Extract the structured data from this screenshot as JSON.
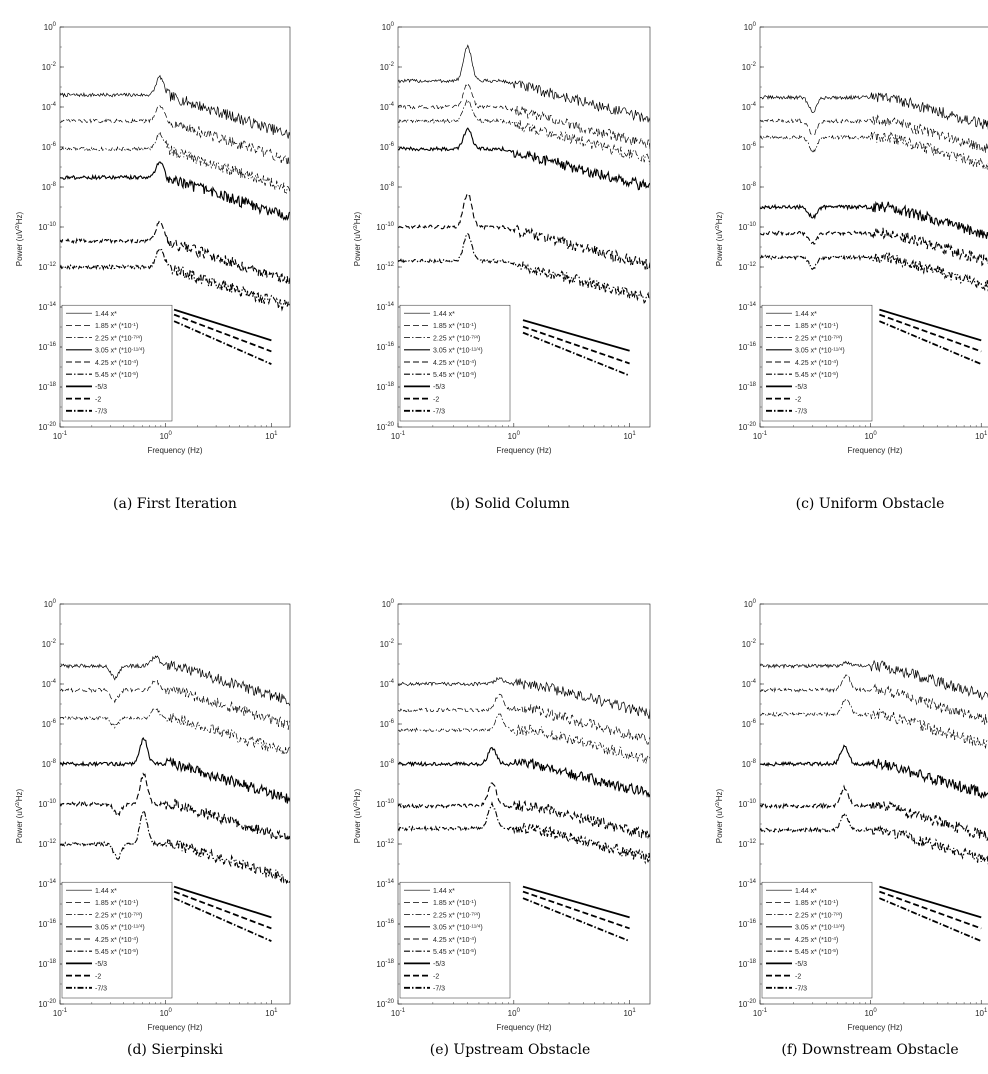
{
  "figure": {
    "panels": [
      {
        "caption": "(a)  First Iteration"
      },
      {
        "caption": "(b)  Solid Column"
      },
      {
        "caption": "(c)  Uniform Obstacle"
      },
      {
        "caption": "(d)  Sierpinski"
      },
      {
        "caption": "(e)  Upstream Obstacle"
      },
      {
        "caption": "(f)  Downstream Obstacle"
      }
    ]
  },
  "chart_data": [
    {
      "type": "line",
      "panel": "a",
      "xlabel": "Frequency (Hz)",
      "ylabel": "Power (uV²/Hz)",
      "xscale": "log",
      "yscale": "log",
      "xlim": [
        0.1,
        15
      ],
      "ylim": [
        1e-20,
        1
      ],
      "xticks": [
        0.1,
        1,
        10
      ],
      "yticks_exp": [
        -20,
        -18,
        -16,
        -14,
        -12,
        -10,
        -8,
        -6,
        -4,
        -2,
        0
      ],
      "legend_position": "bottom-left",
      "series": [
        {
          "name": "1.44 x*",
          "style": "solid-thin",
          "base": 0.0004,
          "peaks": [
            [
              0.88,
              8
            ]
          ],
          "roll": [
            1.0,
            -1.7
          ]
        },
        {
          "name": "1.85 x* (*10⁻¹)",
          "style": "dashed-thin",
          "base": 2e-05,
          "peaks": [
            [
              0.88,
              6
            ]
          ],
          "roll": [
            1.0,
            -1.7
          ]
        },
        {
          "name": "2.25 x* (*10⁻⁷/⁴)",
          "style": "dashdot-thin",
          "base": 8e-07,
          "peaks": [
            [
              0.88,
              6
            ]
          ],
          "roll": [
            1.0,
            -1.7
          ]
        },
        {
          "name": "3.05 x* (*10⁻¹¹/⁴)",
          "style": "solid-medium",
          "base": 3e-08,
          "peaks": [
            [
              0.88,
              6
            ]
          ],
          "roll": [
            1.0,
            -1.7
          ]
        },
        {
          "name": "4.25 x* (*10⁻⁴)",
          "style": "dashed-medium",
          "base": 2e-11,
          "peaks": [
            [
              0.88,
              10
            ]
          ],
          "roll": [
            1.0,
            -1.7
          ]
        },
        {
          "name": "5.45 x* (*10⁻⁵)",
          "style": "dashdot-medium",
          "base": 1e-12,
          "peaks": [
            [
              0.88,
              8
            ]
          ],
          "roll": [
            1.0,
            -1.7
          ]
        }
      ],
      "reference_lines": [
        {
          "name": "-5/3",
          "slope": -1.6667,
          "style": "solid-thick",
          "y_at_1": 1e-14
        },
        {
          "name": "-2",
          "slope": -2,
          "style": "dashed-thick",
          "y_at_1": 6e-15
        },
        {
          "name": "-7/3",
          "slope": -2.3333,
          "style": "dashdot-thick",
          "y_at_1": 3e-15
        }
      ]
    },
    {
      "type": "line",
      "panel": "b",
      "xlabel": "Frequency (Hz)",
      "ylabel": "Power (uV²/Hz)",
      "xscale": "log",
      "yscale": "log",
      "xlim": [
        0.1,
        15
      ],
      "ylim": [
        1e-20,
        1
      ],
      "xticks": [
        0.1,
        1,
        10
      ],
      "yticks_exp": [
        -20,
        -18,
        -16,
        -14,
        -12,
        -10,
        -8,
        -6,
        -4,
        -2,
        0
      ],
      "legend_position": "bottom-left",
      "series": [
        {
          "name": "1.44 x*",
          "style": "solid-thin",
          "base": 0.002,
          "peaks": [
            [
              0.4,
              50
            ]
          ],
          "roll": [
            0.8,
            -1.5
          ]
        },
        {
          "name": "1.85 x* (*10⁻¹)",
          "style": "dashed-thin",
          "base": 0.0001,
          "peaks": [
            [
              0.4,
              15
            ]
          ],
          "roll": [
            0.8,
            -1.5
          ]
        },
        {
          "name": "2.25 x* (*10⁻⁷/⁴)",
          "style": "dashdot-thin",
          "base": 2e-05,
          "peaks": [
            [
              0.4,
              10
            ]
          ],
          "roll": [
            0.8,
            -1.5
          ]
        },
        {
          "name": "3.05 x* (*10⁻¹¹/⁴)",
          "style": "solid-medium",
          "base": 8e-07,
          "peaks": [
            [
              0.4,
              10
            ]
          ],
          "roll": [
            0.8,
            -1.5
          ]
        },
        {
          "name": "4.25 x* (*10⁻⁴)",
          "style": "dashed-medium",
          "base": 1e-10,
          "peaks": [
            [
              0.4,
              50
            ]
          ],
          "roll": [
            0.8,
            -1.5
          ]
        },
        {
          "name": "5.45 x* (*10⁻⁵)",
          "style": "dashdot-medium",
          "base": 2e-12,
          "peaks": [
            [
              0.4,
              20
            ]
          ],
          "roll": [
            0.8,
            -1.5
          ]
        }
      ],
      "reference_lines": [
        {
          "name": "-5/3",
          "slope": -1.6667,
          "style": "solid-thick",
          "y_at_1": 3e-15
        },
        {
          "name": "-2",
          "slope": -2,
          "style": "dashed-thick",
          "y_at_1": 1.5e-15
        },
        {
          "name": "-7/3",
          "slope": -2.3333,
          "style": "dashdot-thick",
          "y_at_1": 8e-16
        }
      ]
    },
    {
      "type": "line",
      "panel": "c",
      "xlabel": "Frequency (Hz)",
      "ylabel": "Power (uV²/Hz)",
      "xscale": "log",
      "yscale": "log",
      "xlim": [
        0.1,
        12
      ],
      "ylim": [
        1e-20,
        1
      ],
      "xticks": [
        0.1,
        1,
        10
      ],
      "yticks_exp": [
        -20,
        -18,
        -16,
        -14,
        -12,
        -10,
        -8,
        -6,
        -4,
        -2,
        0
      ],
      "legend_position": "bottom-left",
      "series": [
        {
          "name": "1.44 x*",
          "style": "solid-thin",
          "base": 0.0003,
          "peaks": [
            [
              0.3,
              0.2
            ]
          ],
          "roll": [
            1.5,
            -1.6
          ]
        },
        {
          "name": "1.85 x* (*10⁻¹)",
          "style": "dashed-thin",
          "base": 2e-05,
          "peaks": [
            [
              0.3,
              0.2
            ]
          ],
          "roll": [
            1.5,
            -1.6
          ]
        },
        {
          "name": "2.25 x* (*10⁻⁷/⁴)",
          "style": "dashdot-thin",
          "base": 3e-06,
          "peaks": [
            [
              0.3,
              0.2
            ]
          ],
          "roll": [
            1.5,
            -1.6
          ]
        },
        {
          "name": "3.05 x* (*10⁻¹¹/⁴)",
          "style": "solid-medium",
          "base": 1e-09,
          "peaks": [
            [
              0.3,
              0.3
            ]
          ],
          "roll": [
            1.5,
            -1.6
          ]
        },
        {
          "name": "4.25 x* (*10⁻⁴)",
          "style": "dashed-medium",
          "base": 5e-11,
          "peaks": [
            [
              0.3,
              0.3
            ]
          ],
          "roll": [
            1.5,
            -1.6
          ]
        },
        {
          "name": "5.45 x* (*10⁻⁵)",
          "style": "dashdot-medium",
          "base": 3e-12,
          "peaks": [
            [
              0.3,
              0.3
            ]
          ],
          "roll": [
            1.5,
            -1.6
          ]
        }
      ],
      "reference_lines": [
        {
          "name": "-5/3",
          "slope": -1.6667,
          "style": "solid-thick",
          "y_at_1": 1e-14
        },
        {
          "name": "-2",
          "slope": -2,
          "style": "dashed-thick",
          "y_at_1": 6e-15
        },
        {
          "name": "-7/3",
          "slope": -2.3333,
          "style": "dashdot-thick",
          "y_at_1": 3e-15
        }
      ]
    },
    {
      "type": "line",
      "panel": "d",
      "xlabel": "Frequency (Hz)",
      "ylabel": "Power (uV²/Hz)",
      "xscale": "log",
      "yscale": "log",
      "xlim": [
        0.1,
        15
      ],
      "ylim": [
        1e-20,
        1
      ],
      "xticks": [
        0.1,
        1,
        10
      ],
      "yticks_exp": [
        -20,
        -18,
        -16,
        -14,
        -12,
        -10,
        -8,
        -6,
        -4,
        -2,
        0
      ],
      "legend_position": "bottom-left",
      "series": [
        {
          "name": "1.44 x*",
          "style": "solid-thin",
          "base": 0.0008,
          "peaks": [
            [
              0.33,
              0.25
            ],
            [
              0.8,
              3
            ]
          ],
          "roll": [
            1.2,
            -1.6
          ]
        },
        {
          "name": "1.85 x* (*10⁻¹)",
          "style": "dashed-thin",
          "base": 5e-05,
          "peaks": [
            [
              0.33,
              0.3
            ],
            [
              0.8,
              3
            ]
          ],
          "roll": [
            1.2,
            -1.6
          ]
        },
        {
          "name": "2.25 x* (*10⁻⁷/⁴)",
          "style": "dashdot-thin",
          "base": 2e-06,
          "peaks": [
            [
              0.33,
              0.4
            ],
            [
              0.8,
              3
            ]
          ],
          "roll": [
            1.2,
            -1.6
          ]
        },
        {
          "name": "3.05 x* (*10⁻¹¹/⁴)",
          "style": "solid-medium",
          "base": 1e-08,
          "peaks": [
            [
              0.62,
              20
            ]
          ],
          "roll": [
            1.2,
            -1.6
          ]
        },
        {
          "name": "4.25 x* (*10⁻⁴)",
          "style": "dashed-medium",
          "base": 1e-10,
          "peaks": [
            [
              0.35,
              0.3
            ],
            [
              0.62,
              30
            ]
          ],
          "roll": [
            1.2,
            -1.6
          ]
        },
        {
          "name": "5.45 x* (*10⁻⁵)",
          "style": "dashdot-medium",
          "base": 1e-12,
          "peaks": [
            [
              0.35,
              0.2
            ],
            [
              0.62,
              40
            ]
          ],
          "roll": [
            1.2,
            -1.6
          ]
        }
      ],
      "reference_lines": [
        {
          "name": "-5/3",
          "slope": -1.6667,
          "style": "solid-thick",
          "y_at_1": 1e-14
        },
        {
          "name": "-2",
          "slope": -2,
          "style": "dashed-thick",
          "y_at_1": 6e-15
        },
        {
          "name": "-7/3",
          "slope": -2.3333,
          "style": "dashdot-thick",
          "y_at_1": 3e-15
        }
      ]
    },
    {
      "type": "line",
      "panel": "e",
      "xlabel": "Frequency (Hz)",
      "ylabel": "Power (uV²/Hz)",
      "xscale": "log",
      "yscale": "log",
      "xlim": [
        0.1,
        15
      ],
      "ylim": [
        1e-20,
        1
      ],
      "xticks": [
        0.1,
        1,
        10
      ],
      "yticks_exp": [
        -20,
        -18,
        -16,
        -14,
        -12,
        -10,
        -8,
        -6,
        -4,
        -2,
        0
      ],
      "legend_position": "bottom-left",
      "series": [
        {
          "name": "1.44 x*",
          "style": "solid-thin",
          "base": 0.0001,
          "peaks": [
            [
              0.75,
              2
            ]
          ],
          "roll": [
            1.5,
            -1.5
          ]
        },
        {
          "name": "1.85 x* (*10⁻¹)",
          "style": "dashed-thin",
          "base": 5e-06,
          "peaks": [
            [
              0.75,
              6
            ]
          ],
          "roll": [
            1.5,
            -1.5
          ]
        },
        {
          "name": "2.25 x* (*10⁻⁷/⁴)",
          "style": "dashdot-thin",
          "base": 5e-07,
          "peaks": [
            [
              0.75,
              6
            ]
          ],
          "roll": [
            1.5,
            -1.5
          ]
        },
        {
          "name": "3.05 x* (*10⁻¹¹/⁴)",
          "style": "solid-medium",
          "base": 1e-08,
          "peaks": [
            [
              0.65,
              6
            ]
          ],
          "roll": [
            1.5,
            -1.5
          ]
        },
        {
          "name": "4.25 x* (*10⁻⁴)",
          "style": "dashed-medium",
          "base": 8e-11,
          "peaks": [
            [
              0.65,
              15
            ]
          ],
          "roll": [
            1.5,
            -1.5
          ]
        },
        {
          "name": "5.45 x* (*10⁻⁵)",
          "style": "dashdot-medium",
          "base": 6e-12,
          "peaks": [
            [
              0.65,
              15
            ]
          ],
          "roll": [
            1.5,
            -1.5
          ]
        }
      ],
      "reference_lines": [
        {
          "name": "-5/3",
          "slope": -1.6667,
          "style": "solid-thick",
          "y_at_1": 1e-14
        },
        {
          "name": "-2",
          "slope": -2,
          "style": "dashed-thick",
          "y_at_1": 6e-15
        },
        {
          "name": "-7/3",
          "slope": -2.3333,
          "style": "dashdot-thick",
          "y_at_1": 3e-15
        }
      ]
    },
    {
      "type": "line",
      "panel": "f",
      "xlabel": "Frequency (Hz)",
      "ylabel": "Power (uV²/Hz)",
      "xscale": "log",
      "yscale": "log",
      "xlim": [
        0.1,
        12
      ],
      "ylim": [
        1e-20,
        1
      ],
      "xticks": [
        0.1,
        1,
        10
      ],
      "yticks_exp": [
        -20,
        -18,
        -16,
        -14,
        -12,
        -10,
        -8,
        -6,
        -4,
        -2,
        0
      ],
      "legend_position": "bottom-left",
      "series": [
        {
          "name": "1.44 x*",
          "style": "solid-thin",
          "base": 0.0008,
          "peaks": [
            [
              0.6,
              1.5
            ]
          ],
          "roll": [
            1.3,
            -1.6
          ]
        },
        {
          "name": "1.85 x* (*10⁻¹)",
          "style": "dashed-thin",
          "base": 5e-05,
          "peaks": [
            [
              0.6,
              6
            ]
          ],
          "roll": [
            1.3,
            -1.6
          ]
        },
        {
          "name": "2.25 x* (*10⁻⁷/⁴)",
          "style": "dashdot-thin",
          "base": 3e-06,
          "peaks": [
            [
              0.6,
              6
            ]
          ],
          "roll": [
            1.3,
            -1.6
          ]
        },
        {
          "name": "3.05 x* (*10⁻¹¹/⁴)",
          "style": "solid-medium",
          "base": 1e-08,
          "peaks": [
            [
              0.58,
              8
            ]
          ],
          "roll": [
            1.3,
            -1.6
          ]
        },
        {
          "name": "4.25 x* (*10⁻⁴)",
          "style": "dashed-medium",
          "base": 8e-11,
          "peaks": [
            [
              0.58,
              8
            ]
          ],
          "roll": [
            1.3,
            -1.6
          ]
        },
        {
          "name": "5.45 x* (*10⁻⁵)",
          "style": "dashdot-medium",
          "base": 5e-12,
          "peaks": [
            [
              0.58,
              6
            ]
          ],
          "roll": [
            1.3,
            -1.6
          ]
        }
      ],
      "reference_lines": [
        {
          "name": "-5/3",
          "slope": -1.6667,
          "style": "solid-thick",
          "y_at_1": 1e-14
        },
        {
          "name": "-2",
          "slope": -2,
          "style": "dashed-thick",
          "y_at_1": 6e-15
        },
        {
          "name": "-7/3",
          "slope": -2.3333,
          "style": "dashdot-thick",
          "y_at_1": 3e-15
        }
      ]
    }
  ]
}
